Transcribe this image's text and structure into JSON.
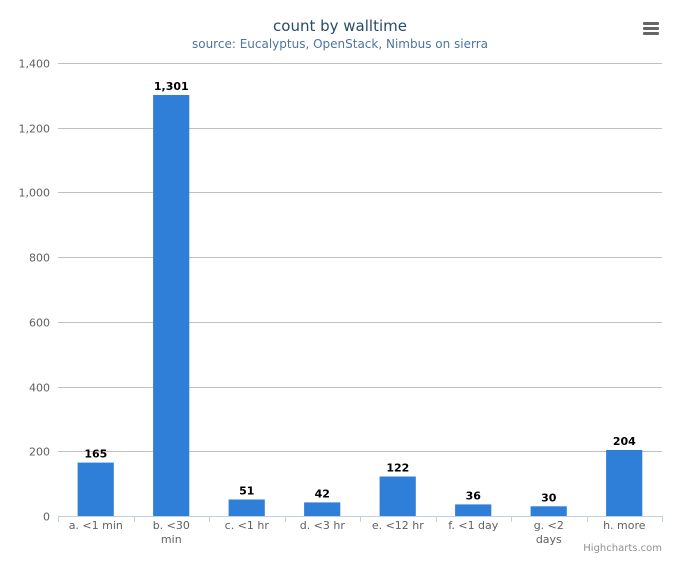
{
  "chart_data": {
    "type": "bar",
    "title": "count by walltime",
    "subtitle": "source: Eucalyptus, OpenStack, Nimbus on sierra",
    "categories": [
      "a. <1 min",
      "b. <30 min",
      "c. <1 hr",
      "d. <3 hr",
      "e. <12 hr",
      "f. <1 day",
      "g. <2 days",
      "h. more"
    ],
    "category_lines": [
      [
        "a. <1 min"
      ],
      [
        "b. <30",
        "min"
      ],
      [
        "c. <1 hr"
      ],
      [
        "d. <3 hr"
      ],
      [
        "e. <12 hr"
      ],
      [
        "f. <1 day"
      ],
      [
        "g. <2",
        "days"
      ],
      [
        "h. more"
      ]
    ],
    "values": [
      165,
      1301,
      51,
      42,
      122,
      36,
      30,
      204
    ],
    "data_labels": [
      "165",
      "1,301",
      "51",
      "42",
      "122",
      "36",
      "30",
      "204"
    ],
    "ylim": [
      0,
      1400
    ],
    "yticks": [
      0,
      200,
      400,
      600,
      800,
      1000,
      1200,
      1400
    ],
    "ytick_labels": [
      "0",
      "200",
      "400",
      "600",
      "800",
      "1,000",
      "1,200",
      "1,400"
    ],
    "grid": true,
    "legend": "none",
    "bar_color": "#2f7ed8",
    "credits": "Highcharts.com"
  }
}
